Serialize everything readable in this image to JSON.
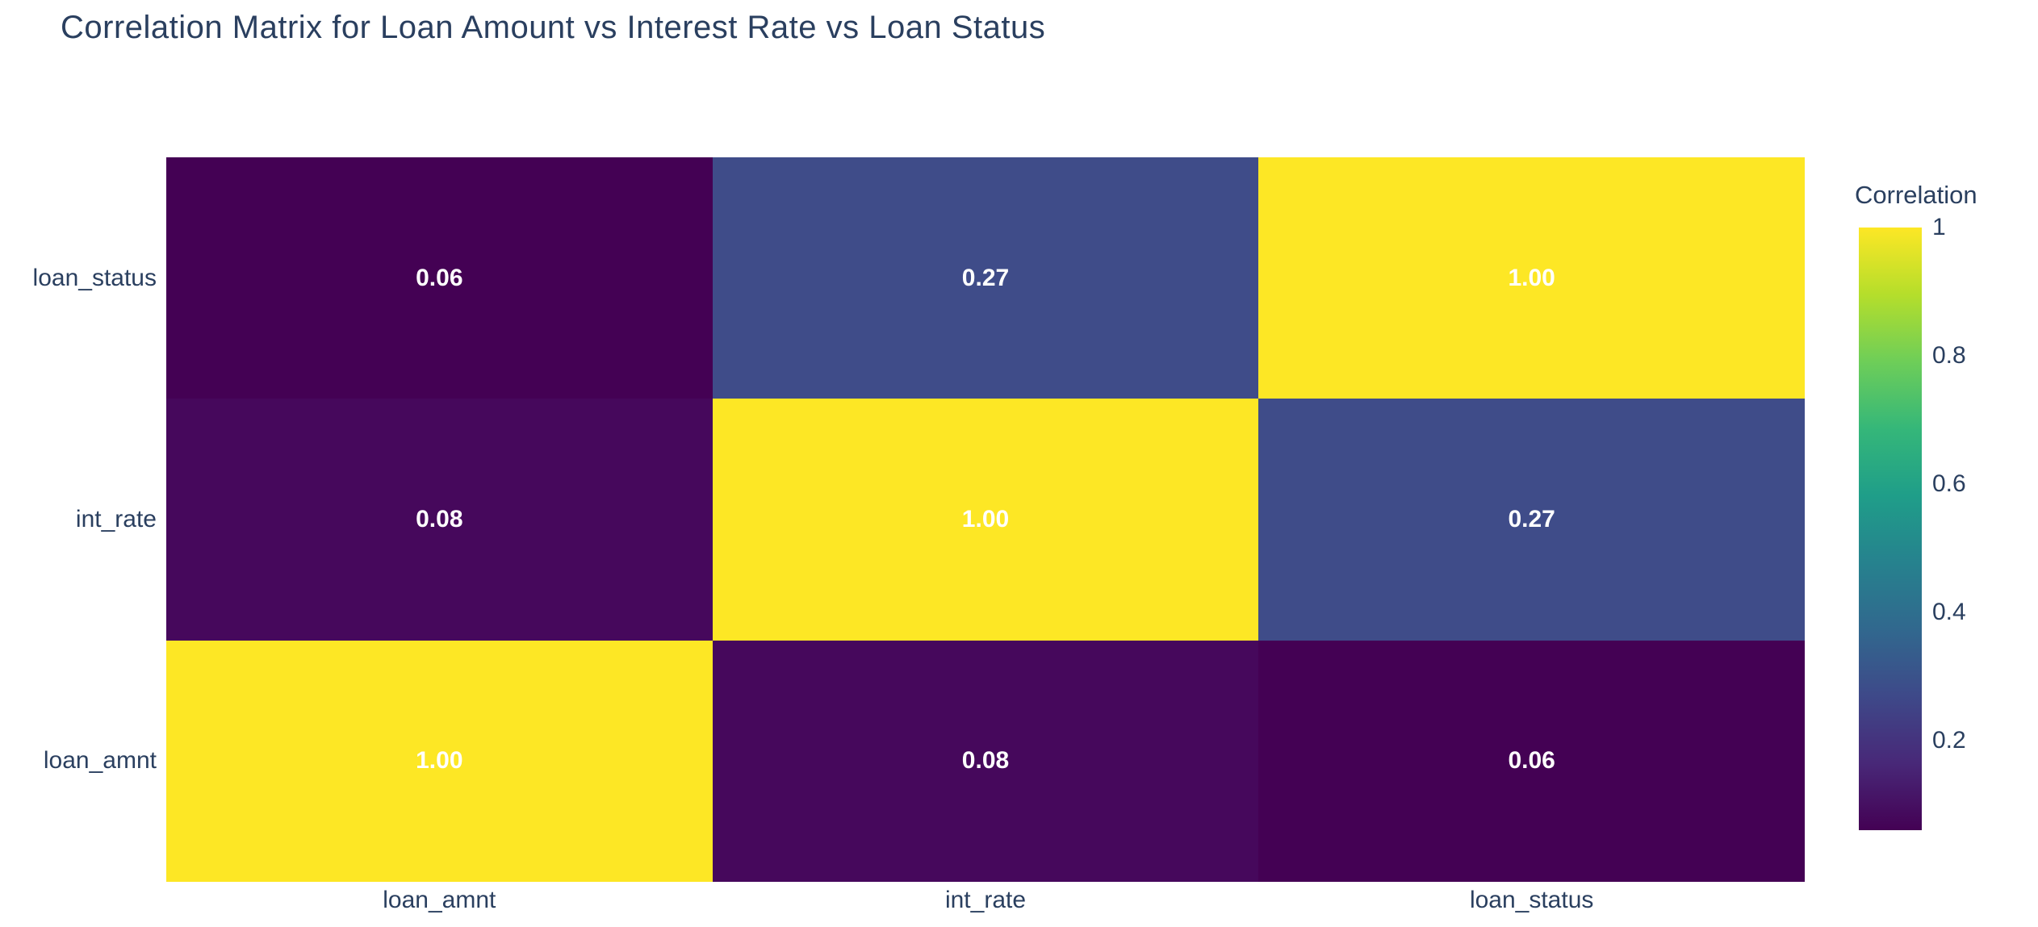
{
  "colors": {
    "background": "#ffffff",
    "text": "#2a3f5f",
    "cell_text": "#ffffff"
  },
  "chart_data": {
    "type": "heatmap",
    "title": "Correlation Matrix for Loan Amount vs Interest Rate vs Loan Status",
    "x_categories": [
      "loan_amnt",
      "int_rate",
      "loan_status"
    ],
    "y_categories": [
      "loan_status",
      "int_rate",
      "loan_amnt"
    ],
    "matrix": [
      [
        0.06,
        0.27,
        1.0
      ],
      [
        0.08,
        1.0,
        0.27
      ],
      [
        1.0,
        0.08,
        0.06
      ]
    ],
    "cell_labels": [
      [
        "0.06",
        "0.27",
        "1.00"
      ],
      [
        "0.08",
        "1.00",
        "0.27"
      ],
      [
        "1.00",
        "0.08",
        "0.06"
      ]
    ],
    "cell_colors": [
      [
        "#440154",
        "#3f4c89",
        "#fde725"
      ],
      [
        "#46085c",
        "#fde725",
        "#3f4c89"
      ],
      [
        "#fde725",
        "#46085c",
        "#440154"
      ]
    ],
    "zmin": 0.06,
    "zmax": 1,
    "grid": false,
    "colorbar": {
      "title": "Correlation",
      "position": "right",
      "tick_labels": [
        "1",
        "0.8",
        "0.6",
        "0.4",
        "0.2"
      ],
      "tick_values": [
        1,
        0.8,
        0.6,
        0.4,
        0.2
      ],
      "colorscale": [
        "#440154",
        "#482878",
        "#3e4989",
        "#31688e",
        "#26828e",
        "#1f9e89",
        "#35b779",
        "#6ece58",
        "#b5de2b",
        "#fde725"
      ]
    }
  }
}
